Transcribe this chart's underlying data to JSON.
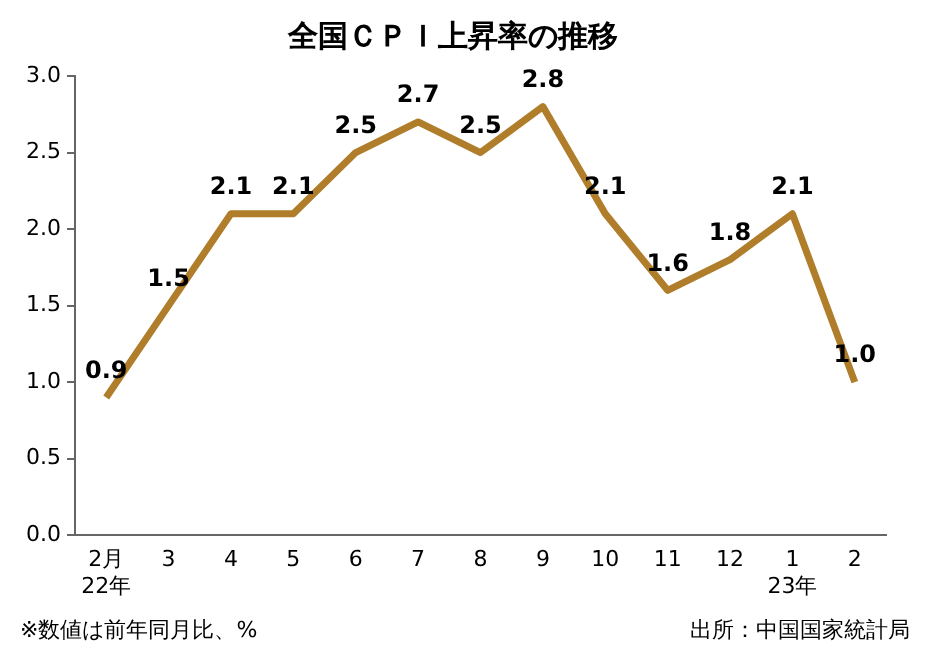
{
  "chart_data": {
    "type": "line",
    "title": "全国ＣＰＩ上昇率の推移",
    "categories": [
      "2月\n22年",
      "3",
      "4",
      "5",
      "6",
      "7",
      "8",
      "9",
      "10",
      "11",
      "12",
      "1\n23年",
      "2"
    ],
    "series": [
      {
        "color": "#b07d2a",
        "values": [
          0.9,
          1.5,
          2.1,
          2.1,
          2.5,
          2.7,
          2.5,
          2.8,
          2.1,
          1.6,
          1.8,
          2.1,
          1.0
        ],
        "value_labels": [
          "0.9",
          "1.5",
          "2.1",
          "2.1",
          "2.5",
          "2.7",
          "2.5",
          "2.8",
          "2.1",
          "1.6",
          "1.8",
          "2.1",
          "1.0"
        ]
      }
    ],
    "ylim": [
      0,
      3
    ],
    "yticks": [
      {
        "value": 0,
        "label": "0.0"
      },
      {
        "value": 0.5,
        "label": "0.5"
      },
      {
        "value": 1,
        "label": "1.0"
      },
      {
        "value": 1.5,
        "label": "1.5"
      },
      {
        "value": 2,
        "label": "2.0"
      },
      {
        "value": 2.5,
        "label": "2.5"
      },
      {
        "value": 3,
        "label": "3.0"
      }
    ],
    "grid": false,
    "legend": false,
    "annotations": [
      "※数値は前年同月比、%",
      "出所：中国国家統計局"
    ]
  }
}
